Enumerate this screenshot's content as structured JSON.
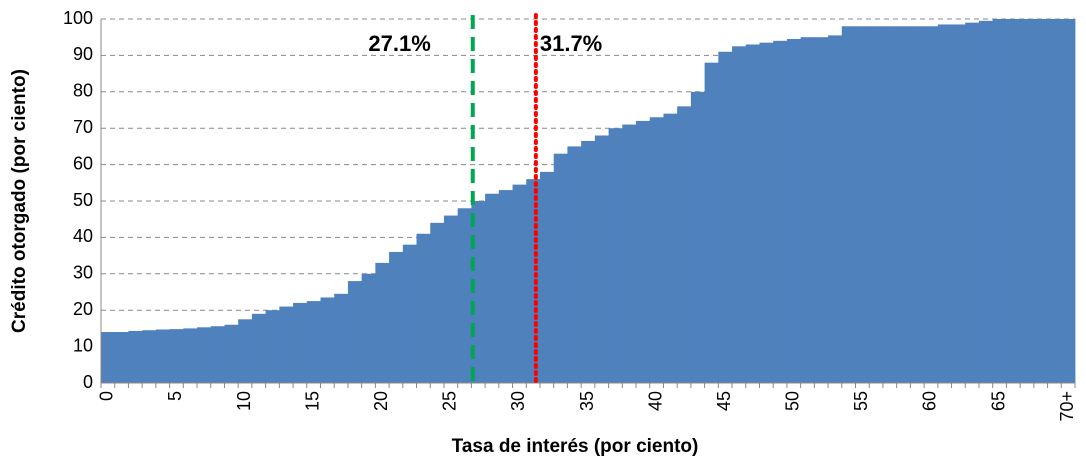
{
  "chart_data": {
    "type": "bar",
    "x_label": "Tasa de interés (por ciento)",
    "y_label": "Crédito otorgado (por ciento)",
    "categories": [
      "0",
      null,
      null,
      null,
      null,
      "5",
      null,
      null,
      null,
      null,
      "10",
      null,
      null,
      null,
      null,
      "15",
      null,
      null,
      null,
      null,
      "20",
      null,
      null,
      null,
      null,
      "25",
      null,
      null,
      null,
      null,
      "30",
      null,
      null,
      null,
      null,
      "35",
      null,
      null,
      null,
      null,
      "40",
      null,
      null,
      null,
      null,
      "45",
      null,
      null,
      null,
      null,
      "50",
      null,
      null,
      null,
      null,
      "55",
      null,
      null,
      null,
      null,
      "60",
      null,
      null,
      null,
      null,
      "65",
      null,
      null,
      null,
      null,
      "70+"
    ],
    "values": [
      14,
      14,
      14.3,
      14.5,
      14.7,
      14.8,
      15,
      15.3,
      15.6,
      16,
      17.5,
      19,
      20,
      21,
      22,
      22.5,
      23.5,
      24.5,
      28,
      30,
      33,
      36,
      38,
      41,
      44,
      46,
      48,
      50,
      52,
      53,
      54.5,
      56,
      58,
      63,
      65,
      66.5,
      68,
      70,
      71,
      72,
      73,
      74,
      76,
      80,
      88,
      91,
      92.5,
      93,
      93.5,
      94,
      94.5,
      95,
      95,
      95.5,
      98,
      98,
      98,
      98,
      98,
      98,
      98,
      98.5,
      98.5,
      99,
      99.5,
      100,
      100,
      100,
      100,
      100,
      100
    ],
    "color": "#4f81bd",
    "ylim": [
      0,
      100
    ],
    "yticks": [
      0,
      10,
      20,
      30,
      40,
      50,
      60,
      70,
      80,
      90,
      100
    ],
    "grid": true,
    "annotations": [
      {
        "label": "27.1%",
        "x": 27.1,
        "color": "#00a651",
        "style": "dashed"
      },
      {
        "label": "31.7%",
        "x": 31.7,
        "color": "#ff0000",
        "style": "dotted"
      }
    ]
  }
}
